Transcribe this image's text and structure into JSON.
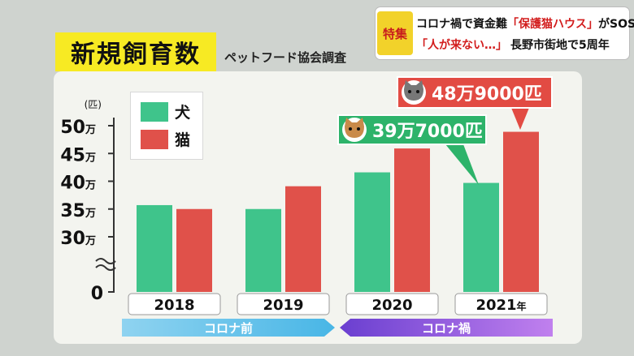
{
  "title": "新規飼育数",
  "subtitle": "ペットフード協会調査",
  "news": {
    "tag": "特集",
    "line1_a": "コロナ禍で資金難",
    "line1_b": "「保護猫ハウス」",
    "line1_c": "がSOS",
    "line2_a": "「人が来ない…」",
    "line2_b": "長野市街地で5周年"
  },
  "legend": {
    "dog": "犬",
    "cat": "猫"
  },
  "colors": {
    "dog": "#3fc48b",
    "cat": "#e0514a",
    "dog_callout": "#2db36a",
    "cat_callout": "#e24b43"
  },
  "eras": {
    "before": "コロナ前",
    "during": "コロナ禍"
  },
  "callouts": {
    "dog": "39万7000匹",
    "cat": "48万9000匹"
  },
  "chart_data": {
    "type": "bar",
    "categories": [
      "2018",
      "2019",
      "2020",
      "2021"
    ],
    "category_suffix": [
      "",
      "",
      "",
      "年"
    ],
    "series": [
      {
        "name": "犬",
        "values": [
          35.7,
          35.0,
          41.6,
          39.7
        ]
      },
      {
        "name": "猫",
        "values": [
          35.0,
          39.1,
          45.9,
          48.9
        ]
      }
    ],
    "y_unit_label": "(匹)",
    "y_ticks": [
      {
        "value": 50,
        "label": "50",
        "suffix": "万"
      },
      {
        "value": 45,
        "label": "45",
        "suffix": "万"
      },
      {
        "value": 40,
        "label": "40",
        "suffix": "万"
      },
      {
        "value": 35,
        "label": "35",
        "suffix": "万"
      },
      {
        "value": 30,
        "label": "30",
        "suffix": "万"
      }
    ],
    "y_zero_label": "0",
    "ylim": [
      30,
      50
    ],
    "axis_break": true
  }
}
